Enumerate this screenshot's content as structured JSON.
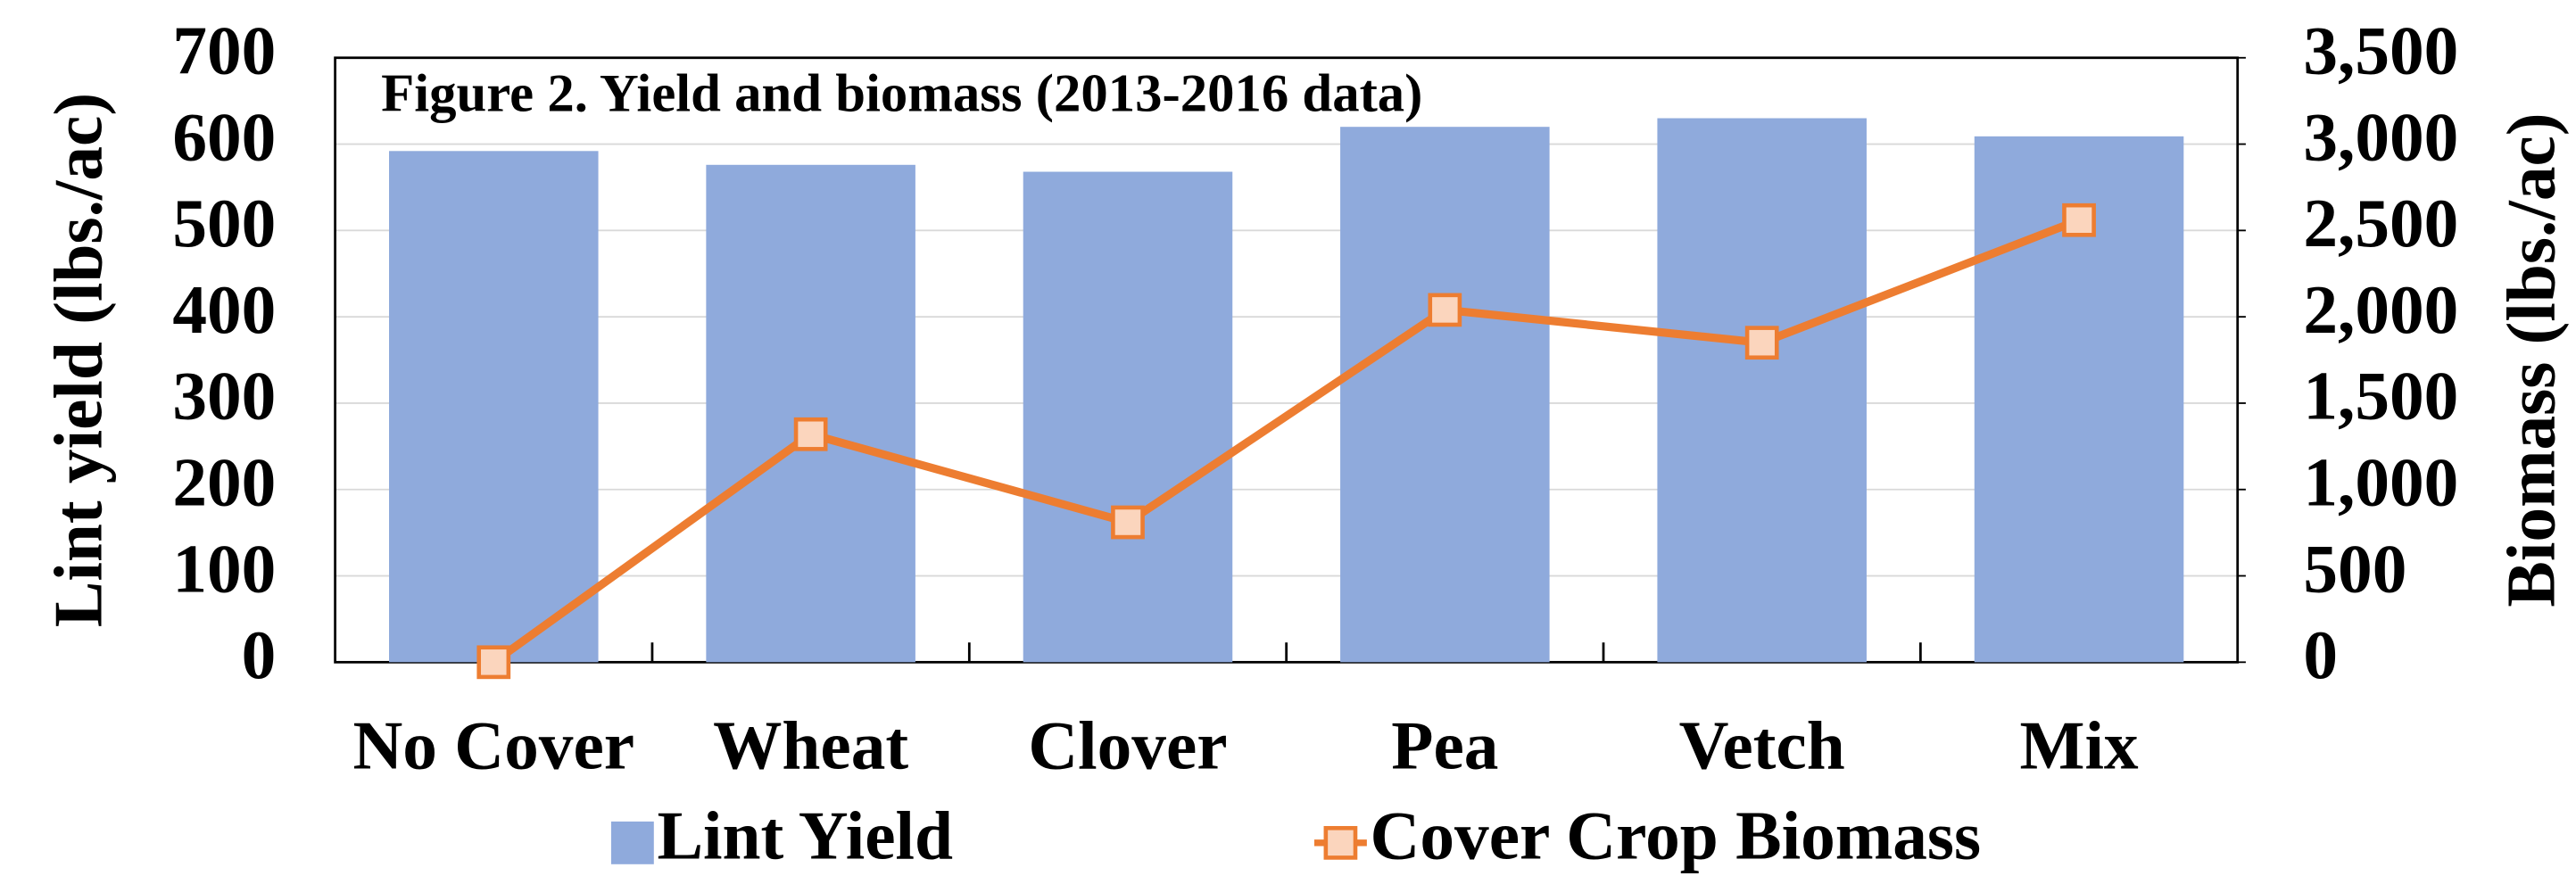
{
  "chart_data": {
    "type": "bar",
    "title": "Figure 2. Yield and biomass (2013-2016 data)",
    "ylabel": "Lint yield (lbs./ac)",
    "y2label": "Biomass (lbs./ac)",
    "categories": [
      "No Cover",
      "Wheat",
      "Clover",
      "Pea",
      "Vetch",
      "Mix"
    ],
    "series": [
      {
        "name": "Lint Yield",
        "type": "bar",
        "color": "#8faadc",
        "values": [
          592,
          576,
          568,
          620,
          630,
          609
        ]
      },
      {
        "name": "Cover Crop Biomass",
        "type": "line",
        "axis": "y2",
        "color": "#ed7d31",
        "marker_fill": "#fbd5bd",
        "values": [
          0,
          1320,
          810,
          2040,
          1850,
          2560
        ]
      }
    ],
    "ylim": [
      0,
      700
    ],
    "yticks": [
      0,
      100,
      200,
      300,
      400,
      500,
      600,
      700
    ],
    "y2lim": [
      0,
      3500
    ],
    "y2ticks": [
      0,
      500,
      {
        "value": 1000,
        "label": "1,000"
      },
      {
        "value": 1500,
        "label": "1,500"
      },
      {
        "value": 2000,
        "label": "2,000"
      },
      {
        "value": 2500,
        "label": "2,500"
      },
      {
        "value": 3000,
        "label": "3,000"
      },
      {
        "value": 3500,
        "label": "3,500"
      }
    ],
    "grid": true,
    "legend": "bottom"
  }
}
